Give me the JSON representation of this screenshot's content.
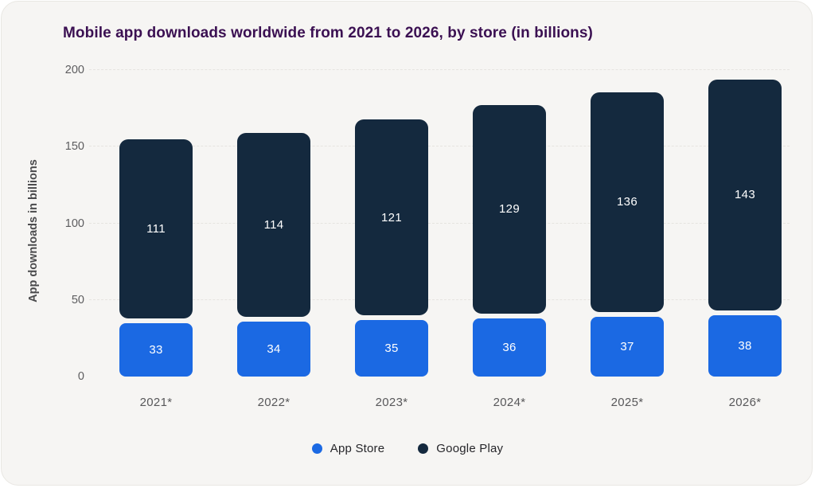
{
  "title": "Mobile app downloads worldwide from 2021 to 2026, by store (in billions)",
  "y_axis": {
    "label": "App downloads in billions",
    "ticks": [
      0,
      50,
      100,
      150,
      200
    ]
  },
  "legend": [
    {
      "label": "App Store",
      "color": "#1b69e3"
    },
    {
      "label": "Google Play",
      "color": "#14293e"
    }
  ],
  "colors": {
    "app_store": "#1b69e3",
    "google_play": "#14293e",
    "title": "#3b1052",
    "background": "#f6f5f3",
    "tick_text": "#5d5d5f",
    "value_text": "#ffffff"
  },
  "chart_data": {
    "type": "bar",
    "stacked": true,
    "title": "Mobile app downloads worldwide from 2021 to 2026, by store (in billions)",
    "categories": [
      "2021*",
      "2022*",
      "2023*",
      "2024*",
      "2025*",
      "2026*"
    ],
    "series": [
      {
        "name": "App Store",
        "color": "#1b69e3",
        "values": [
          33,
          34,
          35,
          36,
          37,
          38
        ]
      },
      {
        "name": "Google Play",
        "color": "#14293e",
        "values": [
          111,
          114,
          121,
          129,
          136,
          143
        ]
      }
    ],
    "xlabel": "",
    "ylabel": "App downloads in billions",
    "ylim": [
      0,
      200
    ],
    "yticks": [
      0,
      50,
      100,
      150,
      200
    ],
    "grid": true,
    "grid_style": "dashed",
    "legend_position": "bottom"
  }
}
